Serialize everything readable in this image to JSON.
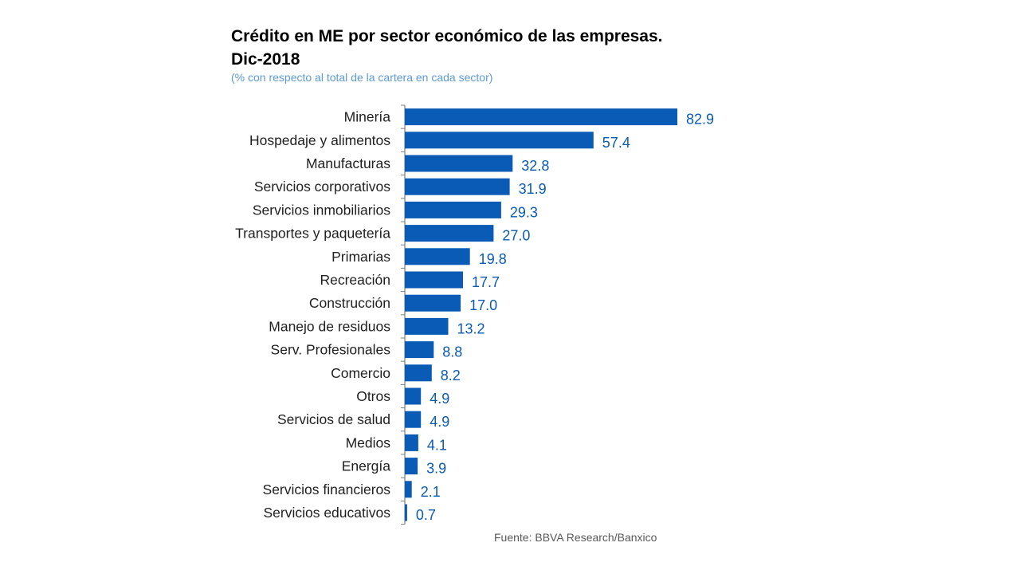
{
  "title": "Crédito en ME por sector económico de las empresas. Dic-2018",
  "subtitle": "(% con respecto al total de la cartera en cada sector)",
  "source": "Fuente: BBVA Research/Banxico",
  "colors": {
    "bar": "#0a5bb5",
    "value_label": "#0a5bb5",
    "axis": "#7f7f7f"
  },
  "chart_data": {
    "type": "bar",
    "orientation": "horizontal",
    "title": "Crédito en ME por sector económico de las empresas. Dic-2018",
    "subtitle": "(% con respecto al total de la cartera en cada sector)",
    "categories": [
      "Minería",
      "Hospedaje y alimentos",
      "Manufacturas",
      "Servicios corporativos",
      "Servicios inmobiliarios",
      "Transportes y paquetería",
      "Primarias",
      "Recreación",
      "Construcción",
      "Manejo de residuos",
      "Serv. Profesionales",
      "Comercio",
      "Otros",
      "Servicios de salud",
      "Medios",
      "Energía",
      "Servicios financieros",
      "Servicios educativos"
    ],
    "values": [
      82.9,
      57.4,
      32.8,
      31.9,
      29.3,
      27.0,
      19.8,
      17.7,
      17.0,
      13.2,
      8.8,
      8.2,
      4.9,
      4.9,
      4.1,
      3.9,
      2.1,
      0.7
    ],
    "value_labels": [
      "82.9",
      "57.4",
      "32.8",
      "31.9",
      "29.3",
      "27.0",
      "19.8",
      "17.7",
      "17.0",
      "13.2",
      "8.8",
      "8.2",
      "4.9",
      "4.9",
      "4.1",
      "3.9",
      "2.1",
      "0.7"
    ],
    "xlim": [
      0,
      82.9
    ],
    "grid": false,
    "legend": "none",
    "data_labels": true
  }
}
